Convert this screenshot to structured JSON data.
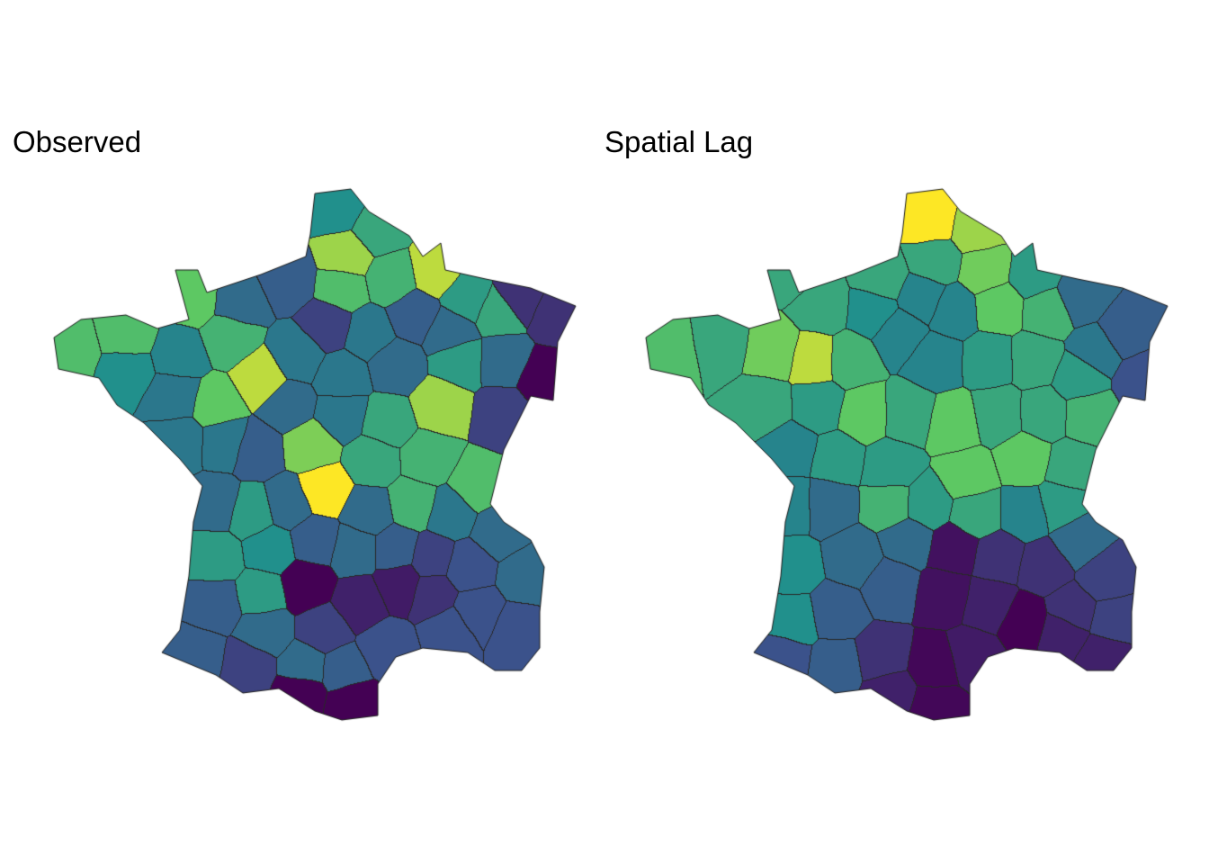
{
  "panels": [
    {
      "title": "Observed",
      "type": "choropleth",
      "palette": "viridis"
    },
    {
      "title": "Spatial Lag",
      "type": "choropleth",
      "palette": "viridis"
    }
  ],
  "colors": {
    "palette_stops": [
      "#440154",
      "#3b528b",
      "#21908c",
      "#5dc863",
      "#fde725"
    ],
    "border": "#1a1a1a",
    "background": "#ffffff"
  }
}
